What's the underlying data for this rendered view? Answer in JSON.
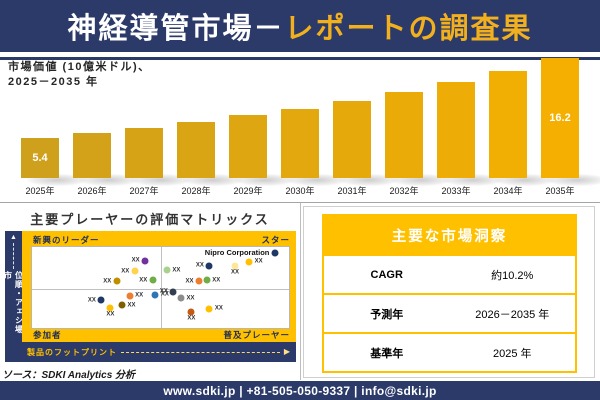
{
  "header": {
    "title_part1": "神経導管市場－",
    "title_part2": "レポートの調査果"
  },
  "bar_section": {
    "subtitle_line1": "市場価値 (10億米ドル)、",
    "subtitle_line2": "2025－2035 年"
  },
  "chart_data": [
    {
      "type": "bar",
      "title": "市場価値 (10億米ドル)、2025－2035 年",
      "categories": [
        "2025年",
        "2026年",
        "2027年",
        "2028年",
        "2029年",
        "2030年",
        "2031年",
        "2032年",
        "2033年",
        "2034年",
        "2035年"
      ],
      "values": [
        5.4,
        6.1,
        6.8,
        7.6,
        8.5,
        9.3,
        10.4,
        11.6,
        12.9,
        14.4,
        16.2
      ],
      "value_labels": {
        "first_bar": "5.4",
        "last_bar": "16.2"
      },
      "ylim": [
        0,
        16.2
      ],
      "grid": false,
      "legend": "none",
      "bar_color_start": "#CFA01C",
      "bar_color_end": "#F5AF00"
    },
    {
      "type": "scatter",
      "title": "主要プレーヤーの評価マトリックス",
      "xlabel": "製品のフットプリント",
      "ylabel": "市場シェア・順位",
      "quadrant_labels": {
        "top_left": "新興のリーダー",
        "top_right": "スター",
        "bottom_left": "参加者",
        "bottom_right": "普及プレーヤー"
      },
      "points": [
        {
          "x": 44,
          "y": 17,
          "color": "#7030A0",
          "label": "XX",
          "label_pos": "left"
        },
        {
          "x": 40,
          "y": 30,
          "color": "#FFD34D",
          "label": "XX",
          "label_pos": "left"
        },
        {
          "x": 33,
          "y": 42,
          "color": "#BF8F00",
          "label": "XX",
          "label_pos": "left"
        },
        {
          "x": 47,
          "y": 41,
          "color": "#70AD47",
          "label": "XX",
          "label_pos": "left"
        },
        {
          "x": 52.5,
          "y": 29,
          "color": "#A9D18E",
          "label": "XX",
          "label_pos": "right"
        },
        {
          "x": 69,
          "y": 23,
          "color": "#1F3864",
          "label": "XX",
          "label_pos": "left"
        },
        {
          "x": 79,
          "y": 24,
          "color": "#FFE699",
          "label": "XX",
          "label_pos": "below"
        },
        {
          "x": 84.5,
          "y": 18,
          "color": "#FFC000",
          "label": "XX",
          "label_pos": "right"
        },
        {
          "x": 94.5,
          "y": 7,
          "color": "#1F3864",
          "label": "Nipro Corporation",
          "label_pos": "left",
          "emphasis": true
        },
        {
          "x": 65,
          "y": 42,
          "color": "#ED7D31",
          "label": "XX",
          "label_pos": "left"
        },
        {
          "x": 68,
          "y": 41,
          "color": "#70AD47",
          "label": "XX",
          "label_pos": "right"
        },
        {
          "x": 27,
          "y": 66,
          "color": "#1F3864",
          "label": "XX",
          "label_pos": "left"
        },
        {
          "x": 38,
          "y": 60,
          "color": "#ED7D31",
          "label": "XX",
          "label_pos": "right"
        },
        {
          "x": 48,
          "y": 59,
          "color": "#2E75B6",
          "label": "XX",
          "label_pos": "right"
        },
        {
          "x": 30.5,
          "y": 75,
          "color": "#FFC000",
          "label": "XX",
          "label_pos": "below"
        },
        {
          "x": 35,
          "y": 72,
          "color": "#7F6000",
          "label": "XX",
          "label_pos": "right"
        },
        {
          "x": 55,
          "y": 55,
          "color": "#333F50",
          "label": "XX",
          "label_pos": "left"
        },
        {
          "x": 58,
          "y": 63,
          "color": "#8C8C8C",
          "label": "XX",
          "label_pos": "right"
        },
        {
          "x": 62,
          "y": 80,
          "color": "#C55A11",
          "label": "XX",
          "label_pos": "below"
        },
        {
          "x": 69,
          "y": 76,
          "color": "#FFC000",
          "label": "XX",
          "label_pos": "right"
        }
      ]
    }
  ],
  "insights": {
    "title": "主要な市場洞察",
    "rows": [
      {
        "label": "CAGR",
        "value": "約10.2%"
      },
      {
        "label": "予測年",
        "value": "2026－2035 年"
      },
      {
        "label": "基準年",
        "value": "2025 年"
      }
    ]
  },
  "source_note": "ソース：SDKI Analytics 分析",
  "footer": {
    "text": "www.sdki.jp | +81-505-050-9337 | info@sdki.jp"
  },
  "colors": {
    "navy": "#2B3A68",
    "gold": "#FFC000",
    "header_gold_text": "#F2B01E"
  }
}
